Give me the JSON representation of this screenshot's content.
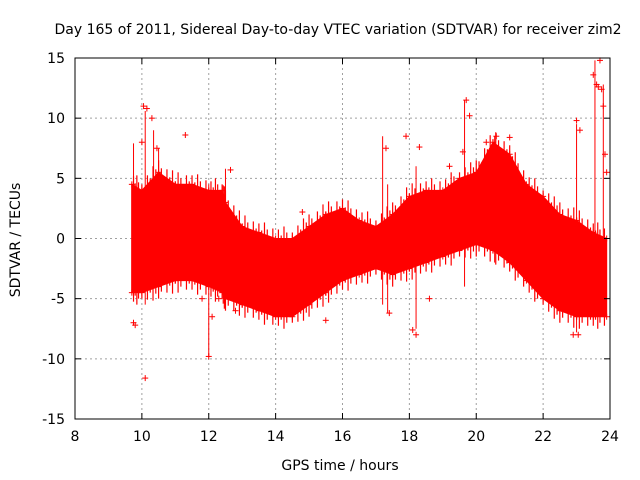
{
  "chart_data": {
    "type": "scatter",
    "title": "Day 165 of 2011, Sidereal Day-to-day VTEC variation (SDTVAR) for receiver zim2",
    "xlabel": "GPS time / hours",
    "ylabel": "SDTVAR / TECUs",
    "xlim": [
      8,
      24
    ],
    "ylim": [
      -15,
      15
    ],
    "xticks": [
      8,
      10,
      12,
      14,
      16,
      18,
      20,
      22,
      24
    ],
    "yticks": [
      -15,
      -10,
      -5,
      0,
      5,
      10,
      15
    ],
    "grid": true,
    "marker": "+",
    "color": "#ff0000",
    "series": [
      {
        "name": "SDTVAR",
        "band_x": [
          9.7,
          10.0,
          10.5,
          11.0,
          11.5,
          12.0,
          12.4,
          12.5,
          13.0,
          13.5,
          14.0,
          14.5,
          15.0,
          15.5,
          16.0,
          16.5,
          17.0,
          17.5,
          18.0,
          18.5,
          19.0,
          19.5,
          20.0,
          20.5,
          21.0,
          21.5,
          22.0,
          22.5,
          23.0,
          23.5,
          23.9
        ],
        "band_upper": [
          4.5,
          4.0,
          5.5,
          4.5,
          4.5,
          4.0,
          4.0,
          3.0,
          1.0,
          0.5,
          0.0,
          0.0,
          1.0,
          2.0,
          2.5,
          1.5,
          1.0,
          2.0,
          3.5,
          4.0,
          4.0,
          5.0,
          5.5,
          8.0,
          7.0,
          4.5,
          3.5,
          2.0,
          1.5,
          0.5,
          0.0
        ],
        "band_lower": [
          -4.5,
          -4.5,
          -4.0,
          -3.5,
          -3.5,
          -4.0,
          -4.5,
          -5.0,
          -5.5,
          -6.0,
          -6.5,
          -6.5,
          -5.5,
          -4.5,
          -3.5,
          -3.0,
          -2.5,
          -3.0,
          -2.5,
          -2.0,
          -1.5,
          -1.0,
          -0.5,
          -1.0,
          -2.0,
          -3.5,
          -5.0,
          -6.0,
          -6.5,
          -6.5,
          -6.5
        ],
        "outliers": [
          [
            9.75,
            -7.0
          ],
          [
            9.8,
            -7.2
          ],
          [
            10.0,
            8.0
          ],
          [
            10.05,
            11.0
          ],
          [
            10.1,
            -11.6
          ],
          [
            10.15,
            10.8
          ],
          [
            10.3,
            10.0
          ],
          [
            10.45,
            7.5
          ],
          [
            11.3,
            8.6
          ],
          [
            11.8,
            -5.0
          ],
          [
            12.0,
            -9.8
          ],
          [
            12.1,
            -6.5
          ],
          [
            12.3,
            -5.0
          ],
          [
            12.65,
            5.7
          ],
          [
            12.8,
            -6.0
          ],
          [
            14.8,
            2.2
          ],
          [
            15.5,
            -6.8
          ],
          [
            17.3,
            7.5
          ],
          [
            17.4,
            -6.2
          ],
          [
            17.9,
            8.5
          ],
          [
            18.1,
            -7.6
          ],
          [
            18.2,
            -8.0
          ],
          [
            18.3,
            7.6
          ],
          [
            18.6,
            -5.0
          ],
          [
            19.2,
            6.0
          ],
          [
            19.6,
            7.2
          ],
          [
            19.7,
            11.5
          ],
          [
            19.8,
            10.2
          ],
          [
            20.3,
            8.0
          ],
          [
            20.6,
            8.5
          ],
          [
            21.0,
            8.4
          ],
          [
            22.9,
            -8.0
          ],
          [
            23.0,
            9.8
          ],
          [
            23.1,
            9.0
          ],
          [
            23.05,
            -8.0
          ],
          [
            23.5,
            13.6
          ],
          [
            23.6,
            12.8
          ],
          [
            23.65,
            12.6
          ],
          [
            23.7,
            14.8
          ],
          [
            23.75,
            12.4
          ],
          [
            23.8,
            11.0
          ],
          [
            23.85,
            7.0
          ],
          [
            23.9,
            5.5
          ]
        ],
        "spikes": [
          [
            9.75,
            7.9,
            -5.0
          ],
          [
            10.1,
            10.6,
            -5.5
          ],
          [
            10.35,
            9.0,
            -4.0
          ],
          [
            10.5,
            7.5,
            -3.0
          ],
          [
            12.5,
            5.8,
            -5.5
          ],
          [
            12.0,
            4.5,
            -9.8
          ],
          [
            17.2,
            8.5,
            -5.5
          ],
          [
            17.35,
            4.5,
            -6.2
          ],
          [
            18.2,
            6.0,
            -7.5
          ],
          [
            19.65,
            11.5,
            -4.0
          ],
          [
            20.55,
            8.5,
            -2.0
          ],
          [
            23.0,
            9.5,
            -7.8
          ],
          [
            23.55,
            14.8,
            -6.0
          ],
          [
            23.8,
            12.8,
            -5.0
          ]
        ]
      }
    ]
  }
}
